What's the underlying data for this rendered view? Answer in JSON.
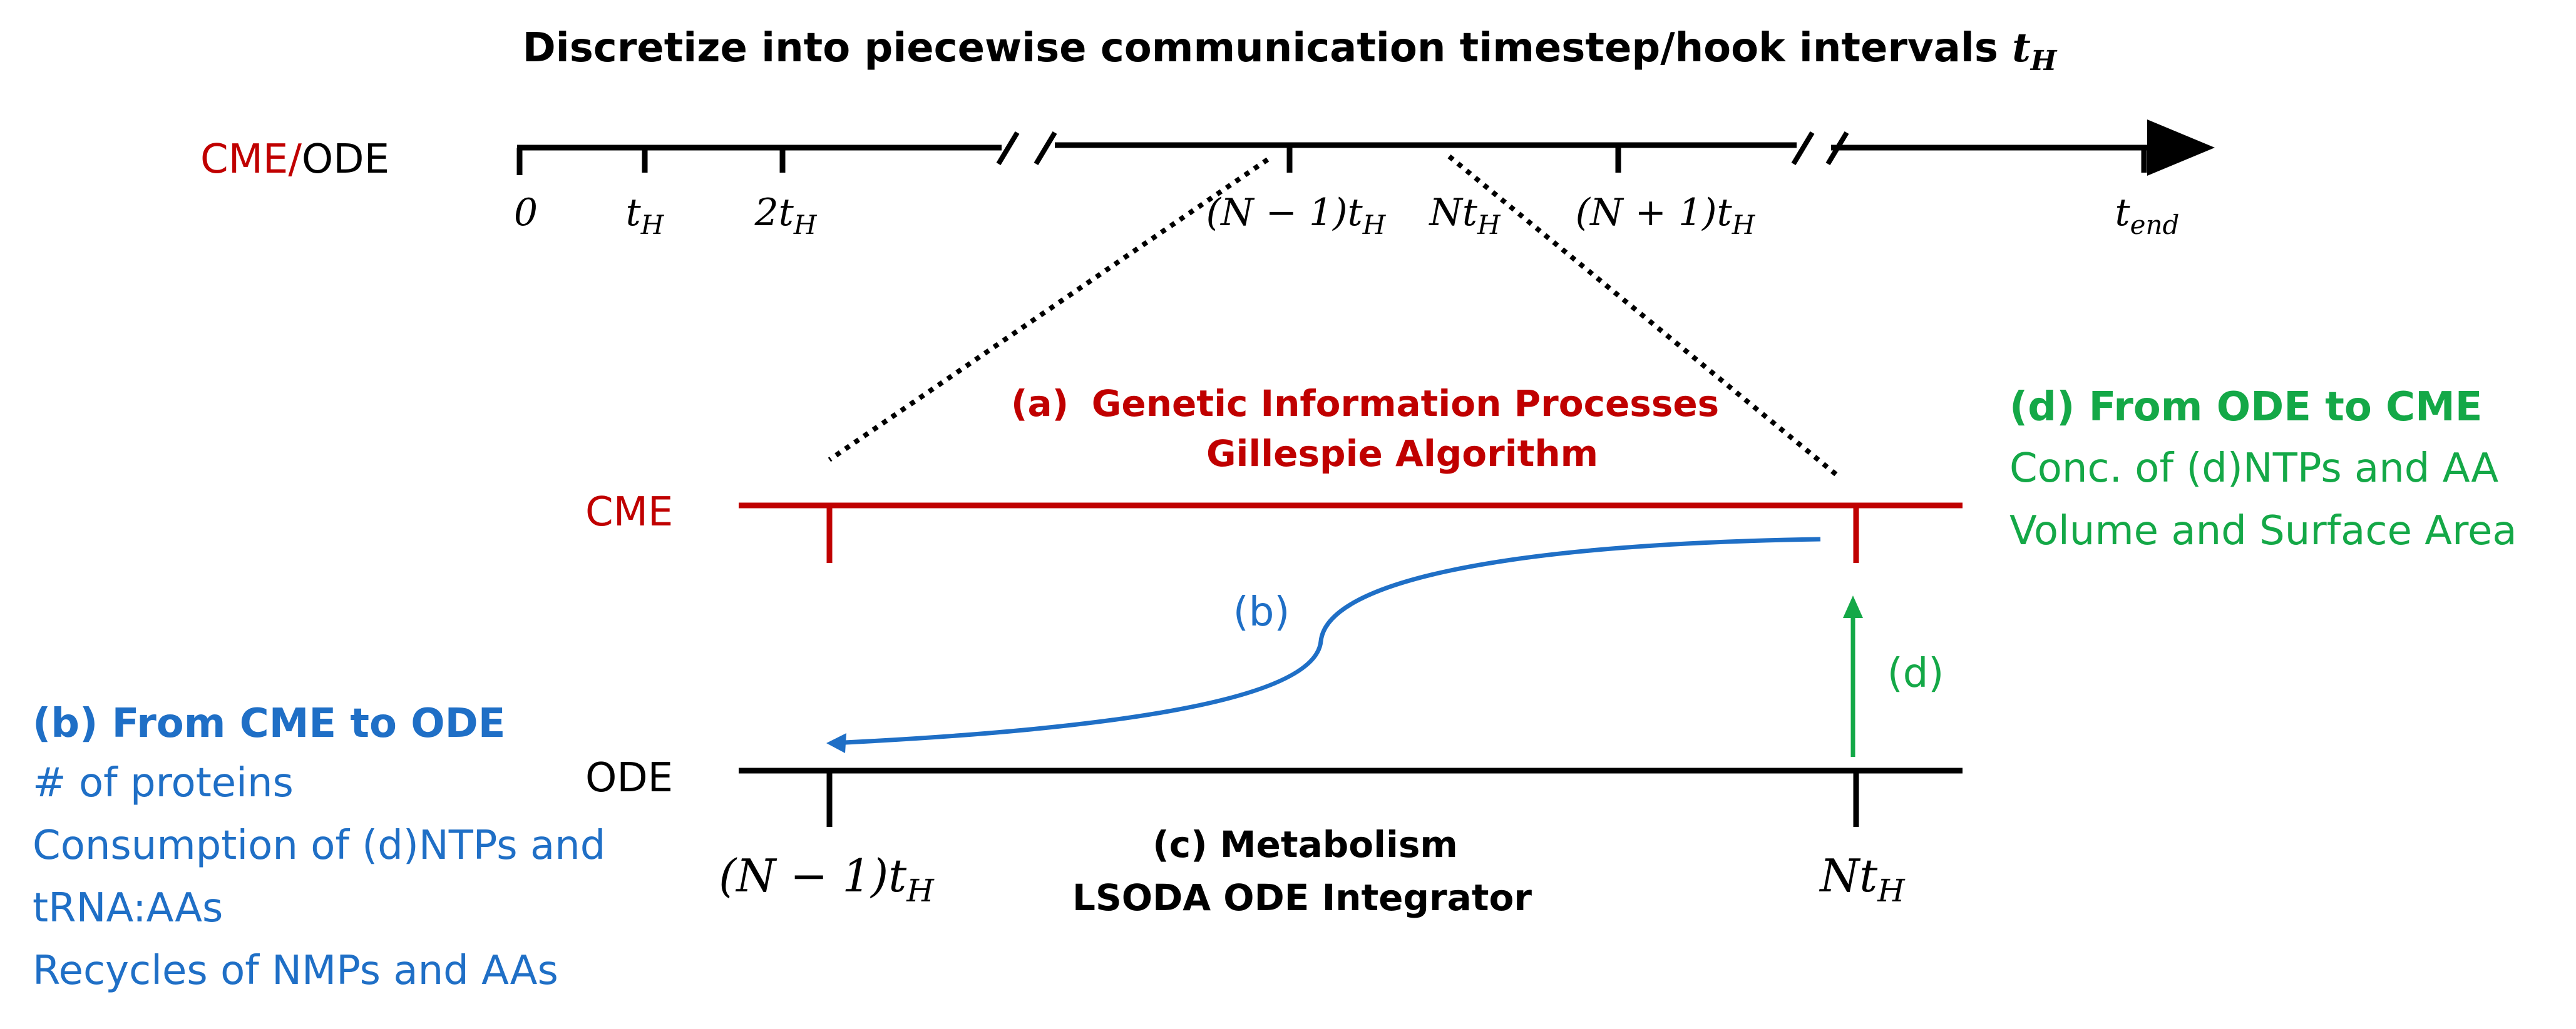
{
  "title": {
    "text": "Discretize into piecewise communication timestep/hook intervals ",
    "symbol": "t",
    "subscript": "H"
  },
  "timeline": {
    "label_cme": "CME/",
    "label_ode": "ODE",
    "ticks": [
      {
        "main": "0",
        "sub": ""
      },
      {
        "main": "t",
        "sub": "H"
      },
      {
        "main": "2t",
        "sub": "H"
      },
      {
        "main": "(N − 1)t",
        "sub": "H"
      },
      {
        "main": "Nt",
        "sub": "H"
      },
      {
        "main": "(N + 1)t",
        "sub": "H"
      },
      {
        "main": "t",
        "sub": "end"
      }
    ]
  },
  "cme": {
    "label": "CME",
    "a_marker": "(a)",
    "a_line1": "Genetic Information Processes",
    "a_line2": "Gillespie Algorithm"
  },
  "ode": {
    "label": "ODE",
    "c_line1": "(c) Metabolism",
    "c_line2": "LSODA ODE Integrator",
    "left_tick": {
      "main": "(N − 1)t",
      "sub": "H"
    },
    "right_tick": {
      "main": "Nt",
      "sub": "H"
    }
  },
  "arrows": {
    "b_label": "(b)",
    "d_label": "(d)"
  },
  "panel_b": {
    "heading": "(b) From CME to ODE",
    "lines": [
      "# of proteins",
      "Consumption of (d)NTPs and",
      "tRNA:AAs",
      "Recycles of NMPs and AAs"
    ]
  },
  "panel_d": {
    "heading": "(d) From ODE to CME",
    "lines": [
      "Conc. of (d)NTPs and AA",
      "Volume and Surface Area"
    ]
  },
  "colors": {
    "cme_red": "#c00000",
    "b_blue": "#1f6fc6",
    "d_green": "#14a847",
    "line_black": "#000000"
  }
}
